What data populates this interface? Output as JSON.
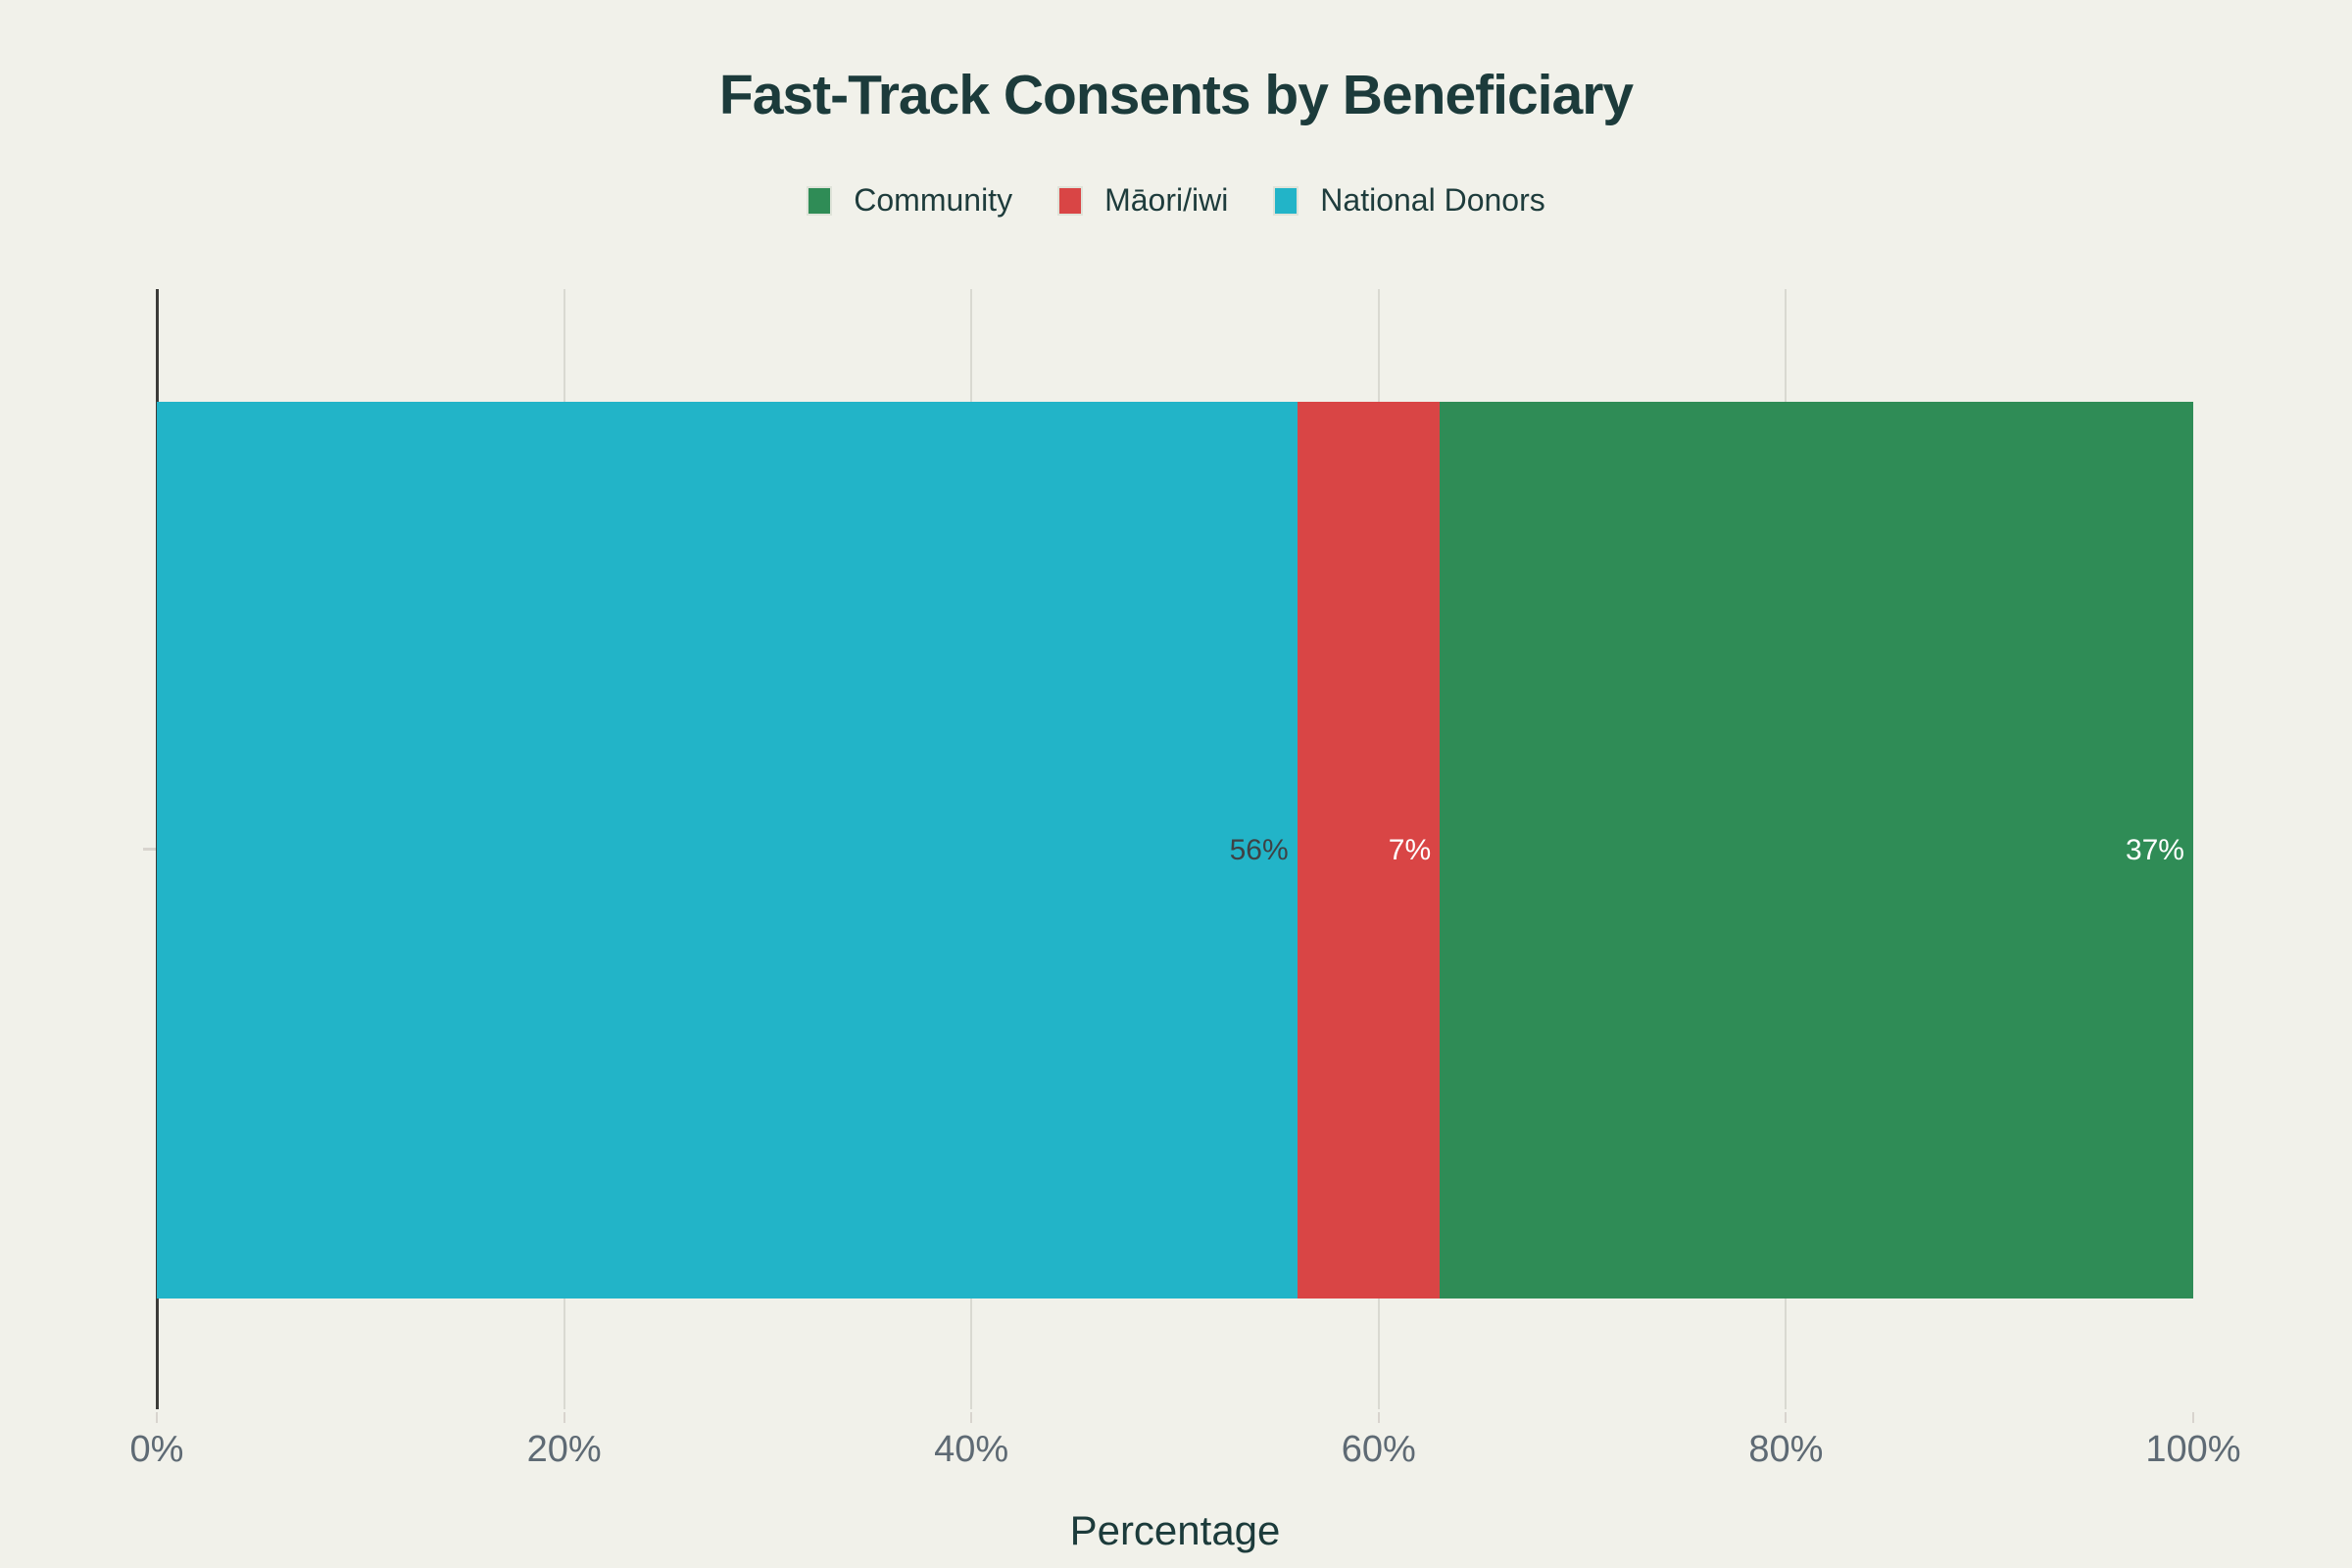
{
  "title": "Fast-Track Consents by Beneficiary",
  "legend": {
    "items": [
      {
        "label": "Community",
        "color": "#2f8c56"
      },
      {
        "label": "Māori/iwi",
        "color": "#d94545"
      },
      {
        "label": "National Donors",
        "color": "#22b4c8"
      }
    ]
  },
  "chart_data": {
    "type": "bar",
    "orientation": "horizontal",
    "stacked": true,
    "title": "Fast-Track Consents by Beneficiary",
    "categories": [
      ""
    ],
    "series": [
      {
        "name": "National Donors",
        "values": [
          56
        ],
        "color": "#22b4c8",
        "label": "56%",
        "label_color": "#3e4245"
      },
      {
        "name": "Māori/iwi",
        "values": [
          7
        ],
        "color": "#d94545",
        "label": "7%",
        "label_color": "#ffffff"
      },
      {
        "name": "Community",
        "values": [
          37
        ],
        "color": "#2f8c56",
        "label": "37%",
        "label_color": "#ffffff"
      }
    ],
    "xlabel": "Percentage",
    "ylabel": "",
    "xlim": [
      0,
      100
    ],
    "x_tick_values": [
      0,
      20,
      40,
      60,
      80,
      100
    ],
    "x_tick_labels": [
      "0%",
      "20%",
      "40%",
      "60%",
      "80%",
      "100%"
    ],
    "gridline_values": [
      20,
      40,
      60,
      80
    ],
    "grid": true,
    "legend_position": "top-center"
  },
  "colors": {
    "background": "#f1f1ea",
    "title_text": "#1c3b3b",
    "tick_text": "#5e6a74",
    "gridline": "#d9d9d1",
    "axis_line": "#3b3b38"
  }
}
